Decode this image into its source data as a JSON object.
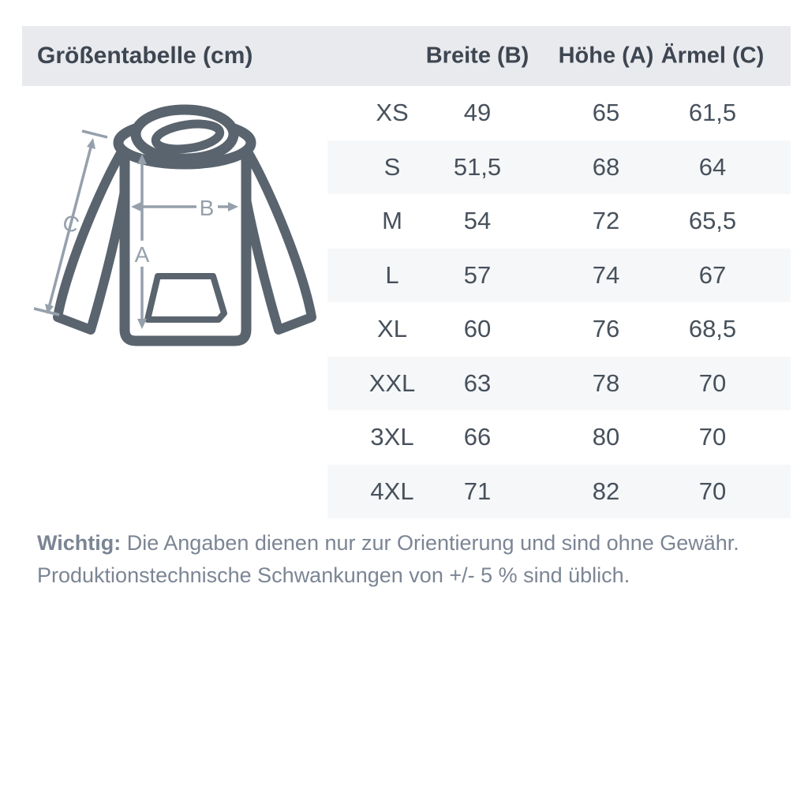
{
  "header": {
    "title": "Größentabelle (cm)",
    "columns": [
      "Breite (B)",
      "Höhe (A)",
      "Ärmel (C)"
    ]
  },
  "diagram": {
    "labels": {
      "a": "A",
      "b": "B",
      "c": "C"
    }
  },
  "table": {
    "rows": [
      {
        "size": "XS",
        "breite": "49",
        "hoehe": "65",
        "aermel": "61,5"
      },
      {
        "size": "S",
        "breite": "51,5",
        "hoehe": "68",
        "aermel": "64"
      },
      {
        "size": "M",
        "breite": "54",
        "hoehe": "72",
        "aermel": "65,5"
      },
      {
        "size": "L",
        "breite": "57",
        "hoehe": "74",
        "aermel": "67"
      },
      {
        "size": "XL",
        "breite": "60",
        "hoehe": "76",
        "aermel": "68,5"
      },
      {
        "size": "XXL",
        "breite": "63",
        "hoehe": "78",
        "aermel": "70"
      },
      {
        "size": "3XL",
        "breite": "66",
        "hoehe": "80",
        "aermel": "70"
      },
      {
        "size": "4XL",
        "breite": "71",
        "hoehe": "82",
        "aermel": "70"
      }
    ]
  },
  "note": {
    "label": "Wichtig:",
    "line1": "Die Angaben dienen nur zur Orientierung und sind ohne Gewähr.",
    "line2": "Produktionstechnische Schwankungen von +/- 5 % sind üblich."
  },
  "colors": {
    "header_bg": "#e9eaee",
    "row_alt_bg": "#f6f7f9",
    "heading_text": "#3d4651",
    "table_text": "#47515c",
    "note_text": "#7b8594",
    "hoodie_outline": "#5a646e",
    "arrow": "#96a0ac"
  }
}
